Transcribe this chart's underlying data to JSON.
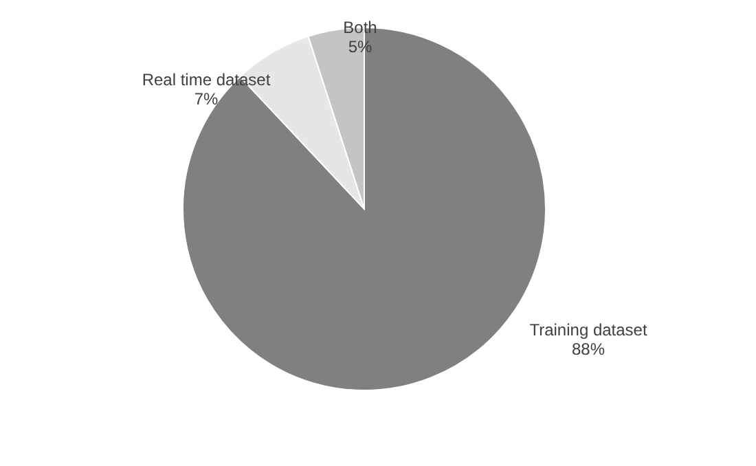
{
  "chart_data": {
    "type": "pie",
    "categories": [
      "Training dataset",
      "Real time dataset",
      "Both"
    ],
    "values": [
      88,
      7,
      5
    ],
    "colors": [
      "#808080",
      "#e6e6e6",
      "#c4c4c4"
    ],
    "value_labels": [
      "88%",
      "7%",
      "5%"
    ],
    "legend": false
  }
}
